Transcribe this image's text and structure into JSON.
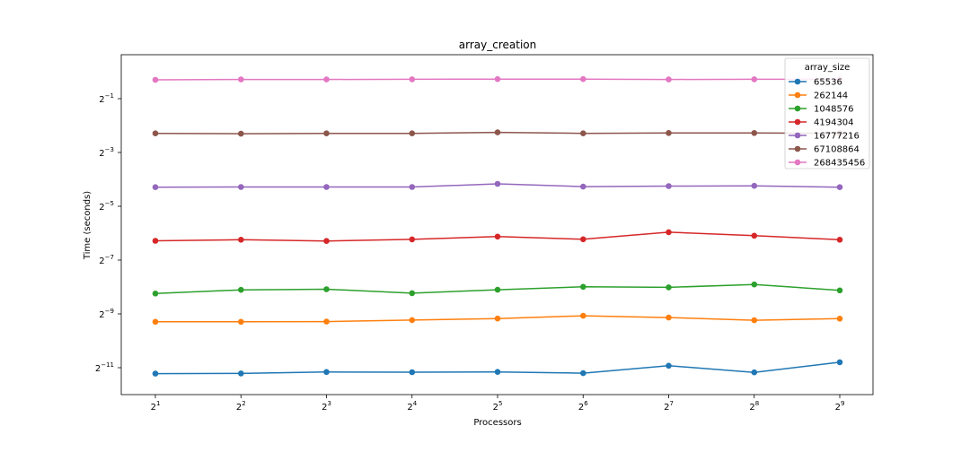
{
  "chart_data": {
    "type": "line",
    "title": "array_creation",
    "xlabel": "Processors",
    "ylabel": "Time (seconds)",
    "x_scale": "log2",
    "y_scale": "log2",
    "x": [
      2,
      4,
      8,
      16,
      32,
      64,
      128,
      256,
      512
    ],
    "x_ticks": [
      {
        "base": "2",
        "exp": "1"
      },
      {
        "base": "2",
        "exp": "2"
      },
      {
        "base": "2",
        "exp": "3"
      },
      {
        "base": "2",
        "exp": "4"
      },
      {
        "base": "2",
        "exp": "5"
      },
      {
        "base": "2",
        "exp": "6"
      },
      {
        "base": "2",
        "exp": "7"
      },
      {
        "base": "2",
        "exp": "8"
      },
      {
        "base": "2",
        "exp": "9"
      }
    ],
    "y_ticks": [
      {
        "base": "2",
        "exp": "−1"
      },
      {
        "base": "2",
        "exp": "−3"
      },
      {
        "base": "2",
        "exp": "−5"
      },
      {
        "base": "2",
        "exp": "−7"
      },
      {
        "base": "2",
        "exp": "−9"
      },
      {
        "base": "2",
        "exp": "−11"
      }
    ],
    "legend_title": "array_size",
    "legend_position": "top-right",
    "grid": false,
    "series": [
      {
        "name": "65536",
        "color": "#1f77b4",
        "values": [
          0.000419,
          0.000421,
          0.000437,
          0.000435,
          0.000438,
          0.000424,
          0.000514,
          0.000433,
          0.000562
        ]
      },
      {
        "name": "262144",
        "color": "#ff7f0e",
        "values": [
          0.001595,
          0.001595,
          0.001603,
          0.001666,
          0.001734,
          0.001861,
          0.001778,
          0.001659,
          0.001727
        ]
      },
      {
        "name": "1048576",
        "color": "#2ca02c",
        "values": [
          0.003299,
          0.003627,
          0.003686,
          0.003327,
          0.003633,
          0.003924,
          0.003868,
          0.004164,
          0.003581
        ]
      },
      {
        "name": "4194304",
        "color": "#d62728",
        "values": [
          0.01285,
          0.01321,
          0.01279,
          0.01331,
          0.01432,
          0.01336,
          0.01604,
          0.01465,
          0.01321
        ]
      },
      {
        "name": "16777216",
        "color": "#9467bd",
        "values": [
          0.05112,
          0.05132,
          0.05132,
          0.05132,
          0.05566,
          0.05189,
          0.05257,
          0.05292,
          0.05112
        ]
      },
      {
        "name": "67108864",
        "color": "#8c564b",
        "values": [
          0.2043,
          0.2027,
          0.2043,
          0.2043,
          0.2098,
          0.2043,
          0.2066,
          0.2066,
          0.2043
        ]
      },
      {
        "name": "268435456",
        "color": "#e377c2",
        "values": [
          0.8127,
          0.8199,
          0.8199,
          0.8237,
          0.8272,
          0.8272,
          0.8199,
          0.8237,
          0.8237
        ]
      }
    ]
  }
}
